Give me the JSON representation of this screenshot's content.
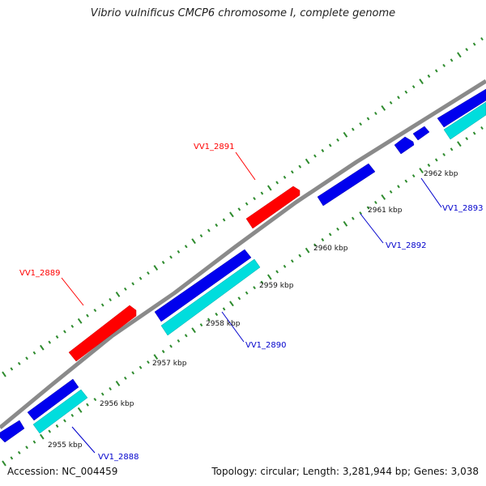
{
  "title": "Vibrio vulnificus CMCP6 chromosome I, complete genome",
  "footer": {
    "accession": "Accession: NC_004459",
    "summary": "Topology: circular; Length: 3,281,944 bp; Genes: 3,038"
  },
  "colors": {
    "backbone": "#8a8a8a",
    "tick": "#2e8b2e",
    "gene_forward": "#ff0000",
    "gene_reverse": "#0000ee",
    "cds_reverse": "#00dddd",
    "label_forward": "#ff0000",
    "label_reverse": "#0000cc",
    "leader_line": "#ff0000"
  },
  "ruler": {
    "labels": [
      "2955 kbp",
      "2956 kbp",
      "2957 kbp",
      "2958 kbp",
      "2959 kbp",
      "2960 kbp",
      "2961 kbp",
      "2962 kbp"
    ]
  },
  "genes": [
    {
      "label": "VV1_2888",
      "strand": "reverse"
    },
    {
      "label": "VV1_2889",
      "strand": "forward"
    },
    {
      "label": "VV1_2890",
      "strand": "reverse"
    },
    {
      "label": "VV1_2891",
      "strand": "forward"
    },
    {
      "label": "VV1_2892",
      "strand": "reverse"
    },
    {
      "label": "VV1_2893",
      "strand": "reverse"
    }
  ]
}
